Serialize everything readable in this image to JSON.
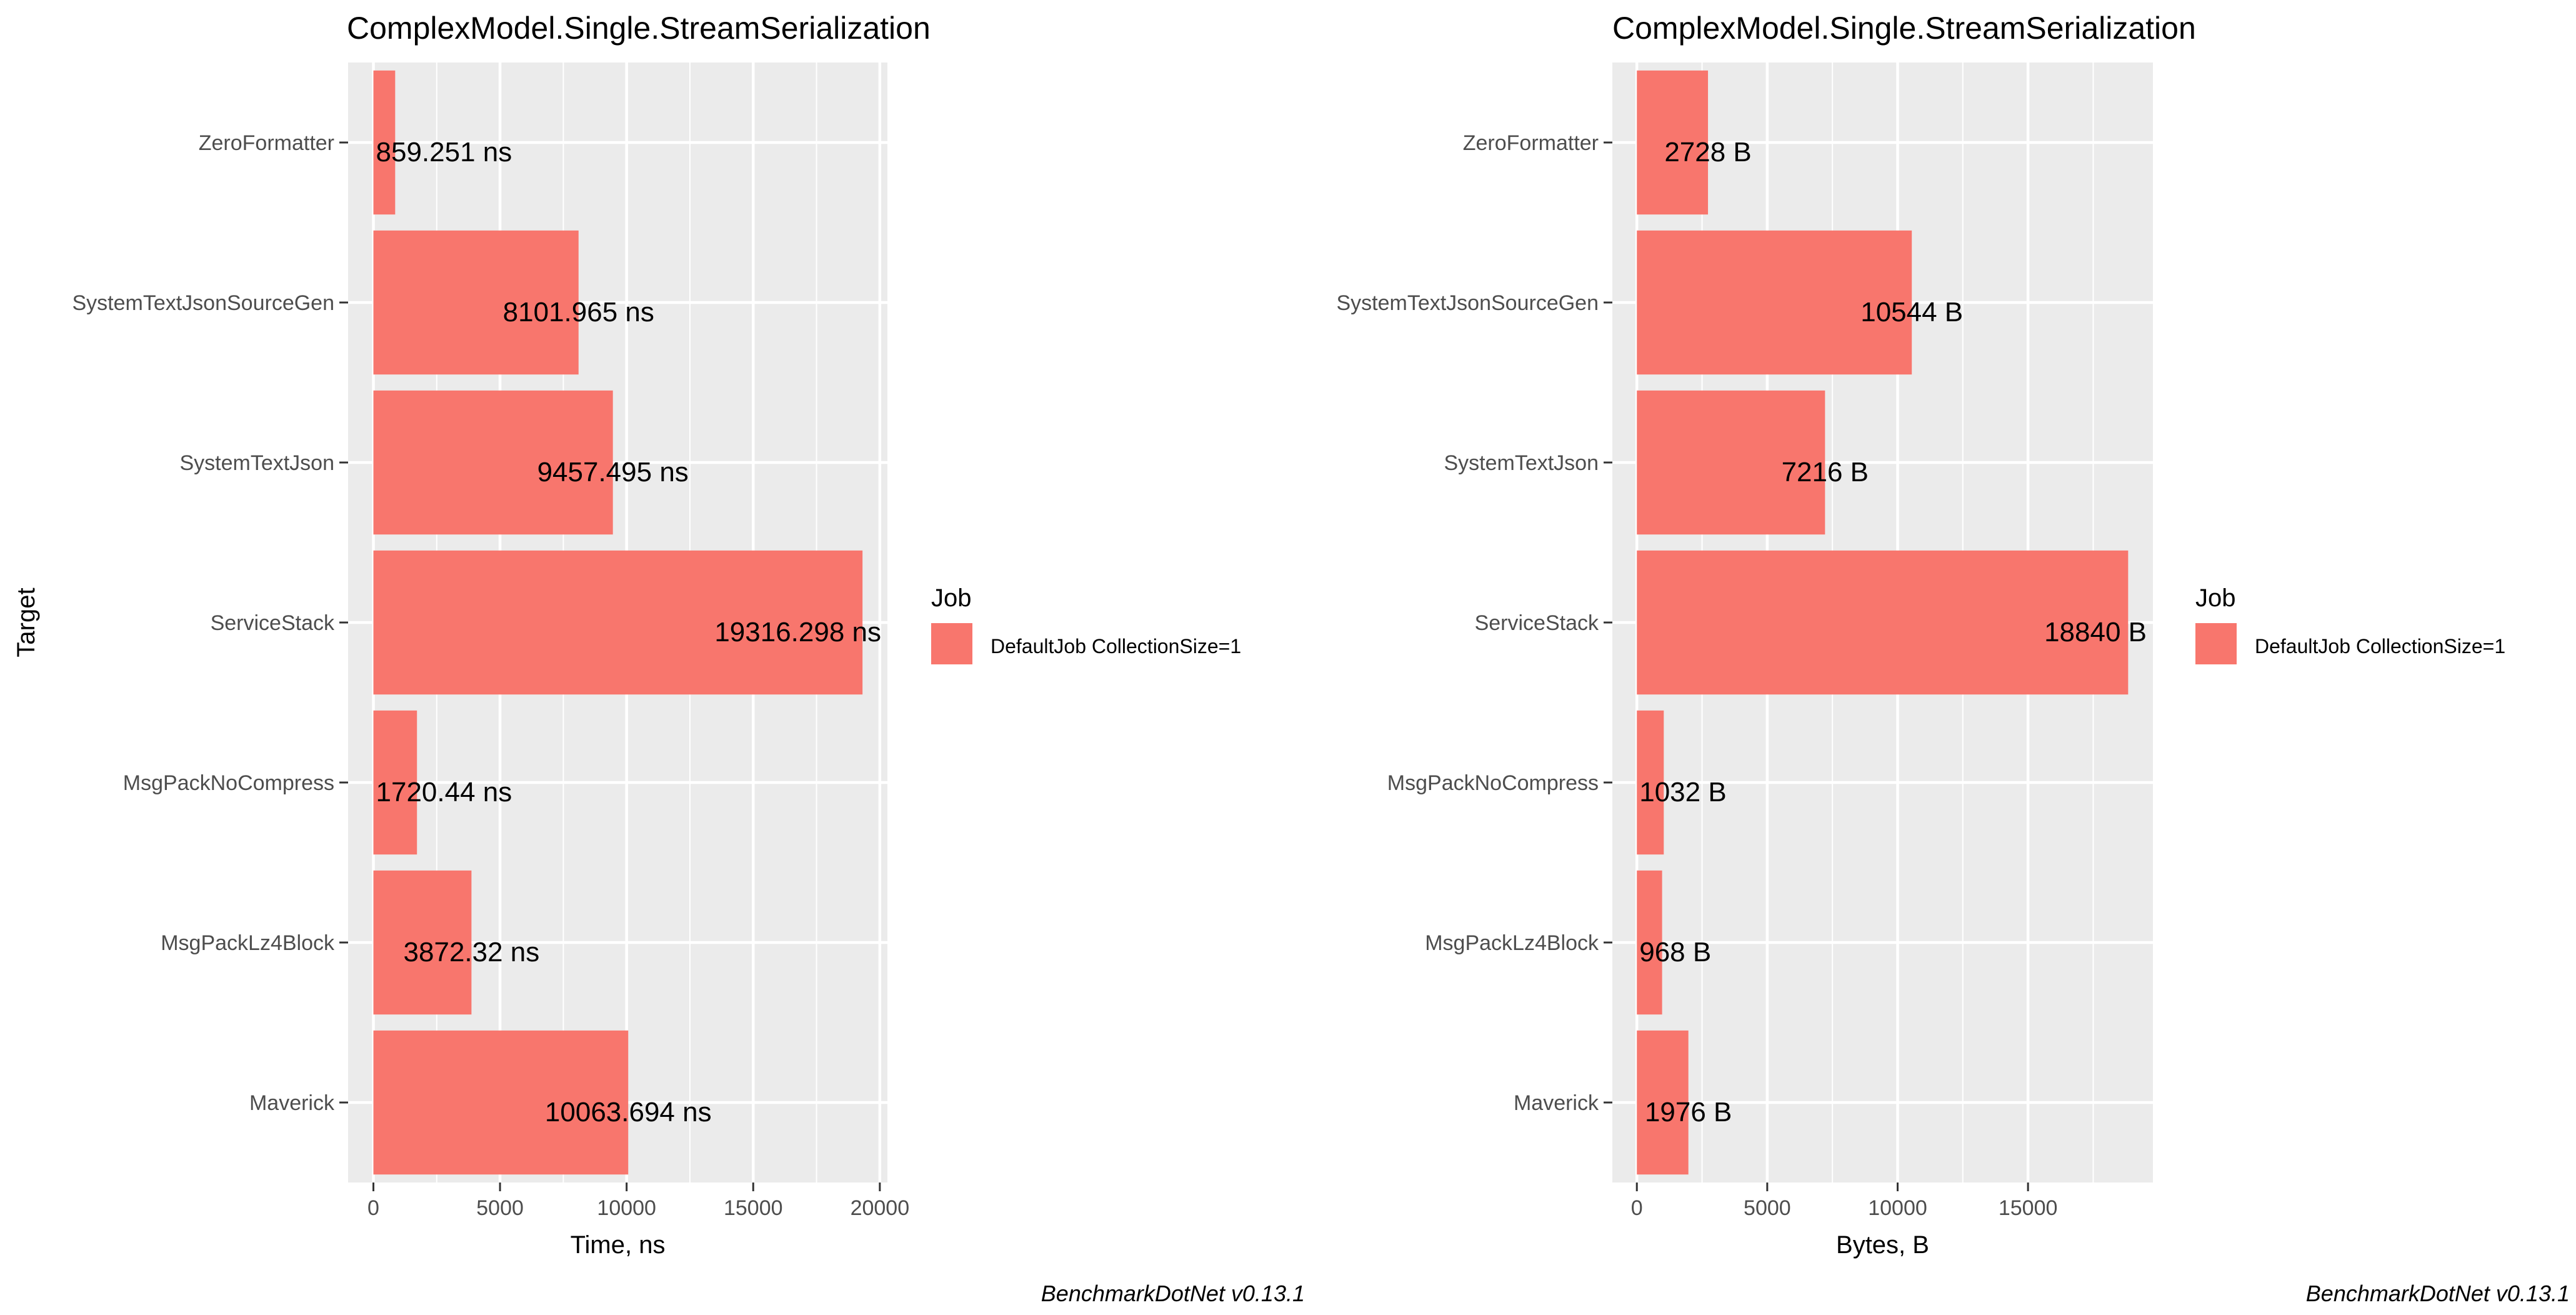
{
  "colors": {
    "bar": "#F8766D",
    "panel": "#EBEBEB",
    "grid": "#FFFFFF",
    "tick_text": "#4D4D4D"
  },
  "legend": {
    "title": "Job",
    "label": "DefaultJob CollectionSize=1"
  },
  "caption": "BenchmarkDotNet v0.13.1",
  "y_axis_title": "Target",
  "chart_data": [
    {
      "type": "bar",
      "orientation": "horizontal",
      "title": "ComplexModel.Single.StreamSerialization",
      "xlabel": "Time, ns",
      "ylabel": "Target",
      "categories": [
        "ZeroFormatter",
        "SystemTextJsonSourceGen",
        "SystemTextJson",
        "ServiceStack",
        "MsgPackNoCompress",
        "MsgPackLz4Block",
        "Maverick"
      ],
      "series": [
        {
          "name": "DefaultJob CollectionSize=1",
          "values": [
            859.251,
            8101.965,
            9457.495,
            19316.298,
            1720.44,
            3872.32,
            10063.694
          ]
        }
      ],
      "data_labels": [
        "859.251 ns",
        "8101.965 ns",
        "9457.495 ns",
        "19316.298 ns",
        "1720.44 ns",
        "3872.32 ns",
        "10063.694 ns"
      ],
      "xticks": [
        0,
        5000,
        10000,
        15000,
        20000
      ],
      "xlim": [
        -1000,
        20300
      ],
      "grid": true
    },
    {
      "type": "bar",
      "orientation": "horizontal",
      "title": "ComplexModel.Single.StreamSerialization",
      "xlabel": "Bytes, B",
      "ylabel": "",
      "categories": [
        "ZeroFormatter",
        "SystemTextJsonSourceGen",
        "SystemTextJson",
        "ServiceStack",
        "MsgPackNoCompress",
        "MsgPackLz4Block",
        "Maverick"
      ],
      "series": [
        {
          "name": "DefaultJob CollectionSize=1",
          "values": [
            2728,
            10544,
            7216,
            18840,
            1032,
            968,
            1976
          ]
        }
      ],
      "data_labels": [
        "2728 B",
        "10544 B",
        "7216 B",
        "18840 B",
        "1032 B",
        "968 B",
        "1976 B"
      ],
      "xticks": [
        0,
        5000,
        10000,
        15000
      ],
      "xlim": [
        -940,
        19790
      ],
      "grid": true
    }
  ]
}
